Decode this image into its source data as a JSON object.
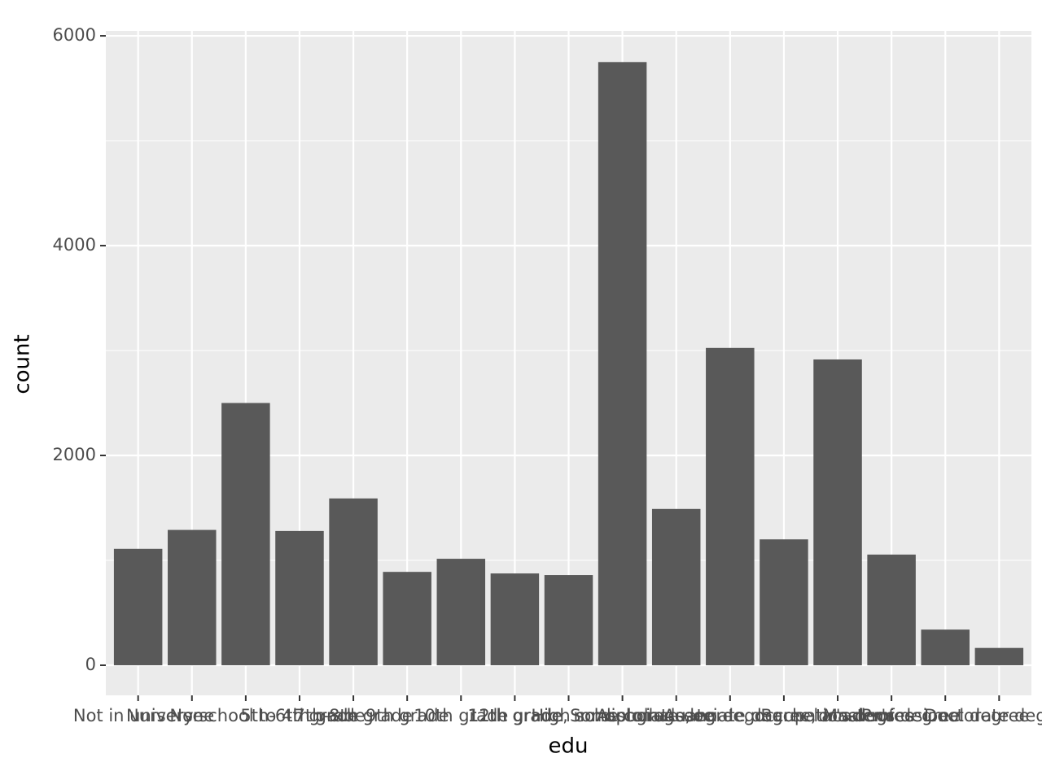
{
  "chart_data": {
    "type": "bar",
    "x_label": "edu",
    "y_label": "count",
    "categories": [
      "Not in universe",
      "None",
      "Nursery school to 4th grade",
      "5th-6th grade",
      "7th-8th grade",
      "9th grade",
      "10th grade",
      "11th grade",
      "12th grade, no diploma",
      "High school graduate",
      "Some college, no degree",
      "Associate degree, occupational",
      "Associate degree, academic",
      "Bachelor's degree",
      "Master's degree",
      "Professional degree",
      "Doctorate degree"
    ],
    "values": [
      1110,
      1290,
      2500,
      1280,
      1590,
      890,
      1015,
      875,
      860,
      5750,
      1490,
      3025,
      1200,
      2915,
      1055,
      340,
      165
    ],
    "color": "#595959",
    "ylim": [
      -287,
      6047
    ],
    "yticks": [
      0,
      2000,
      4000,
      6000
    ],
    "grid": true
  }
}
